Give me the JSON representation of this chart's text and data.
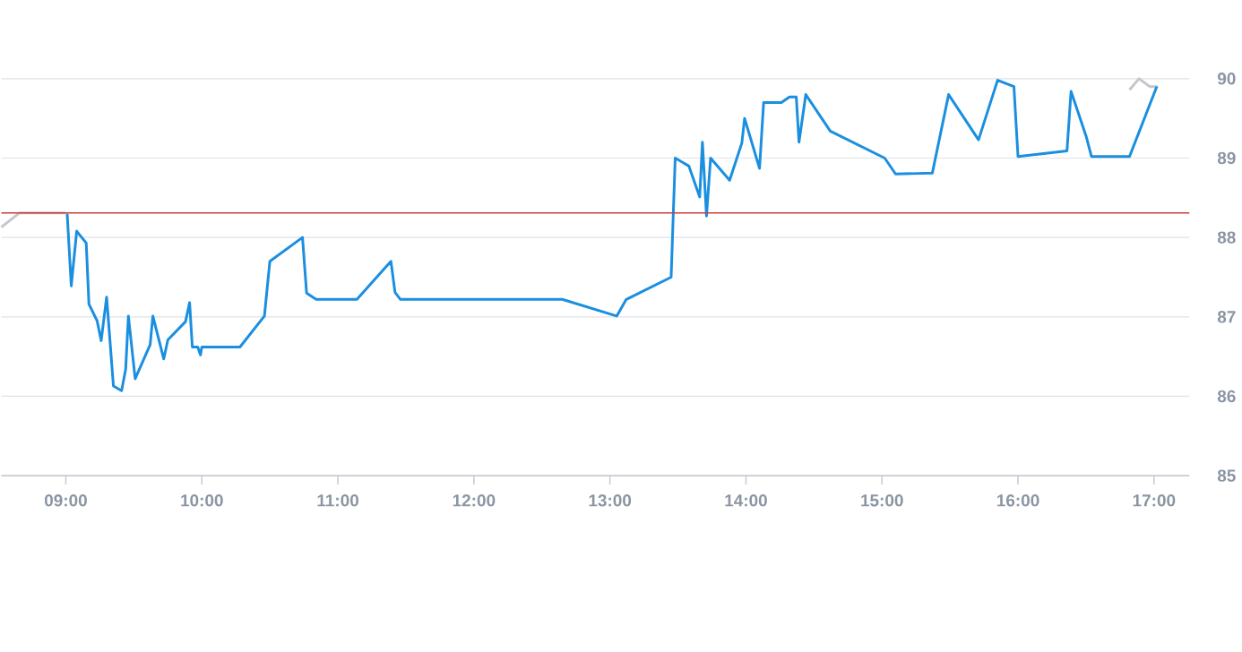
{
  "chart_data": {
    "type": "line",
    "xlim": [
      8.526,
      17.26
    ],
    "ylim": [
      85,
      90
    ],
    "xticks": [
      {
        "value": 9,
        "label": "09:00"
      },
      {
        "value": 10,
        "label": "10:00"
      },
      {
        "value": 11,
        "label": "11:00"
      },
      {
        "value": 12,
        "label": "12:00"
      },
      {
        "value": 13,
        "label": "13:00"
      },
      {
        "value": 14,
        "label": "14:00"
      },
      {
        "value": 15,
        "label": "15:00"
      },
      {
        "value": 16,
        "label": "16:00"
      },
      {
        "value": 17,
        "label": "17:00"
      }
    ],
    "yticks": [
      85,
      86,
      87,
      88,
      89,
      90
    ],
    "grid": "y",
    "legend": false,
    "marker": "none",
    "line_style": "solid",
    "ref_lines": [
      {
        "axis": "y",
        "value": 88.31,
        "color": "#d03a3a"
      }
    ],
    "series": [
      {
        "color": "#c3c7cd",
        "x": [
          8.526,
          8.66,
          9.0
        ],
        "values": [
          88.13,
          88.31,
          88.31
        ]
      },
      {
        "color": "#c3c7cd",
        "x": [
          16.82,
          16.89,
          16.97,
          17.03
        ],
        "values": [
          89.86,
          90.0,
          89.9,
          89.9
        ]
      },
      {
        "color": "#1a8fe0",
        "x": [
          9.01,
          9.04,
          9.08,
          9.15,
          9.17,
          9.23,
          9.26,
          9.3,
          9.35,
          9.41,
          9.44,
          9.46,
          9.51,
          9.62,
          9.64,
          9.72,
          9.75,
          9.88,
          9.91,
          9.93,
          9.97,
          9.99,
          10.0,
          10.28,
          10.46,
          10.5,
          10.74,
          10.77,
          10.84,
          11.14,
          11.39,
          11.42,
          11.46,
          12.65,
          13.05,
          13.12,
          13.45,
          13.48,
          13.58,
          13.66,
          13.68,
          13.71,
          13.74,
          13.88,
          13.97,
          13.99,
          14.1,
          14.13,
          14.26,
          14.32,
          14.37,
          14.39,
          14.44,
          14.62,
          15.02,
          15.1,
          15.37,
          15.49,
          15.71,
          15.85,
          15.97,
          16.0,
          16.36,
          16.39,
          16.5,
          16.54,
          16.82,
          17.02
        ],
        "values": [
          88.3,
          87.39,
          88.08,
          87.93,
          87.16,
          86.95,
          86.7,
          87.25,
          86.13,
          86.07,
          86.34,
          87.01,
          86.22,
          86.65,
          87.01,
          86.47,
          86.71,
          86.94,
          87.18,
          86.62,
          86.62,
          86.52,
          86.62,
          86.62,
          87.01,
          87.7,
          88.0,
          87.3,
          87.22,
          87.22,
          87.7,
          87.31,
          87.22,
          87.22,
          87.01,
          87.22,
          87.5,
          89.0,
          88.9,
          88.51,
          89.2,
          88.27,
          89.0,
          88.72,
          89.19,
          89.5,
          88.87,
          89.7,
          89.7,
          89.77,
          89.77,
          89.2,
          89.8,
          89.34,
          89.0,
          88.8,
          88.81,
          89.8,
          89.23,
          89.98,
          89.9,
          89.02,
          89.09,
          89.84,
          89.28,
          89.02,
          89.02,
          89.9
        ]
      }
    ]
  }
}
